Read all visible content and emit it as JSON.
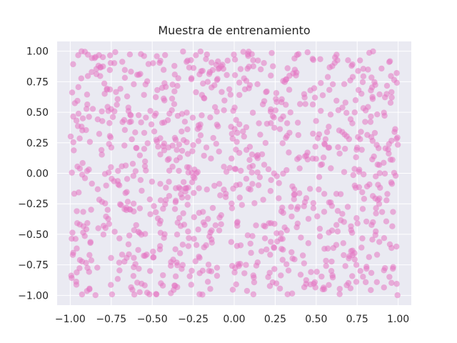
{
  "chart_data": {
    "type": "scatter",
    "title": "Muestra de entrenamiento",
    "xlabel": "",
    "ylabel": "",
    "xlim": [
      -1.08,
      1.08
    ],
    "ylim": [
      -1.08,
      1.08
    ],
    "x_ticks": [
      -1.0,
      -0.75,
      -0.5,
      -0.25,
      0.0,
      0.25,
      0.5,
      0.75,
      1.0
    ],
    "x_tick_labels": [
      "−1.00",
      "−0.75",
      "−0.50",
      "−0.25",
      "0.00",
      "0.25",
      "0.50",
      "0.75",
      "1.00"
    ],
    "y_ticks": [
      -1.0,
      -0.75,
      -0.5,
      -0.25,
      0.0,
      0.25,
      0.5,
      0.75,
      1.0
    ],
    "y_tick_labels": [
      "−1.00",
      "−0.75",
      "−0.50",
      "−0.25",
      "0.00",
      "0.25",
      "0.50",
      "0.75",
      "1.00"
    ],
    "grid": true,
    "legend": "none",
    "colors": {
      "point": "#e377c2",
      "background": "#eaeaf2",
      "grid": "#ffffff",
      "text": "#262626"
    },
    "point_count": 1000,
    "distribution": "uniform on [-1, 1] x [-1, 1]"
  }
}
